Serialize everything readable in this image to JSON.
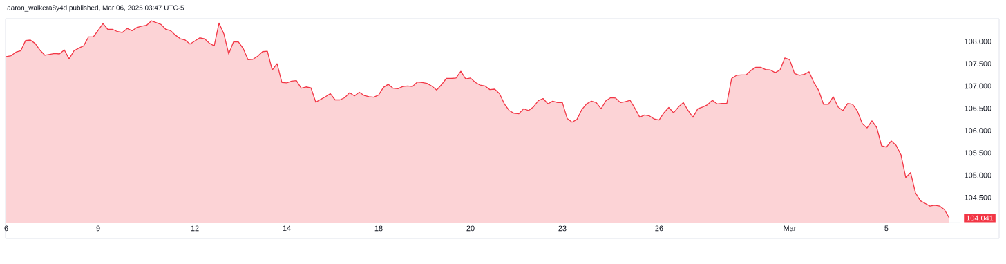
{
  "chart_data": {
    "type": "area",
    "title": "aaron_walkera8y4d published, Mar 06, 2025 03:47 UTC-5",
    "categories": [
      "6",
      null,
      null,
      null,
      null,
      null,
      null,
      null,
      null,
      null,
      null,
      null,
      null,
      null,
      null,
      null,
      null,
      null,
      null,
      "9",
      null,
      null,
      null,
      null,
      null,
      null,
      null,
      null,
      null,
      null,
      null,
      null,
      null,
      null,
      null,
      null,
      null,
      null,
      null,
      "12",
      null,
      null,
      null,
      null,
      null,
      null,
      null,
      null,
      null,
      null,
      null,
      null,
      null,
      null,
      null,
      null,
      null,
      null,
      "14",
      null,
      null,
      null,
      null,
      null,
      null,
      null,
      null,
      null,
      null,
      null,
      null,
      null,
      null,
      null,
      null,
      null,
      null,
      "18",
      null,
      null,
      null,
      null,
      null,
      null,
      null,
      null,
      null,
      null,
      null,
      null,
      null,
      null,
      null,
      null,
      null,
      null,
      "20",
      null,
      null,
      null,
      null,
      null,
      null,
      null,
      null,
      null,
      null,
      null,
      null,
      null,
      null,
      null,
      null,
      null,
      null,
      "23",
      null,
      null,
      null,
      null,
      null,
      null,
      null,
      null,
      null,
      null,
      null,
      null,
      null,
      null,
      null,
      null,
      null,
      null,
      null,
      "26",
      null,
      null,
      null,
      null,
      null,
      null,
      null,
      null,
      null,
      null,
      null,
      null,
      null,
      null,
      null,
      null,
      null,
      null,
      null,
      null,
      null,
      null,
      null,
      null,
      null,
      null,
      "Mar",
      null,
      null,
      null,
      null,
      null,
      null,
      null,
      null,
      null,
      null,
      null,
      null,
      null,
      null,
      null,
      null,
      null,
      null,
      null,
      "5",
      null,
      null,
      null,
      null,
      null,
      null,
      null,
      null,
      null,
      null,
      null,
      null,
      null
    ],
    "series": [
      {
        "color": "#f23645",
        "values": [
          107.66,
          107.68,
          107.76,
          107.79,
          108.02,
          108.03,
          107.95,
          107.8,
          107.69,
          107.71,
          107.73,
          107.72,
          107.81,
          107.61,
          107.79,
          107.85,
          107.9,
          108.1,
          108.1,
          108.25,
          108.4,
          108.27,
          108.27,
          108.22,
          108.2,
          108.29,
          108.24,
          108.31,
          108.34,
          108.36,
          108.46,
          108.42,
          108.38,
          108.27,
          108.24,
          108.14,
          108.06,
          108.03,
          107.94,
          108.01,
          108.08,
          108.06,
          107.96,
          107.9,
          108.41,
          108.17,
          107.72,
          107.99,
          107.99,
          107.84,
          107.59,
          107.6,
          107.67,
          107.77,
          107.78,
          107.36,
          107.5,
          107.08,
          107.07,
          107.11,
          107.12,
          106.95,
          106.98,
          106.96,
          106.64,
          106.7,
          106.76,
          106.83,
          106.69,
          106.69,
          106.74,
          106.85,
          106.78,
          106.86,
          106.79,
          106.76,
          106.75,
          106.8,
          106.97,
          107.04,
          106.95,
          106.94,
          106.99,
          107.0,
          106.99,
          107.09,
          107.08,
          107.06,
          107.0,
          106.91,
          107.03,
          107.17,
          107.17,
          107.18,
          107.33,
          107.16,
          107.18,
          107.08,
          107.02,
          107.0,
          106.92,
          106.93,
          106.83,
          106.6,
          106.45,
          106.39,
          106.38,
          106.49,
          106.45,
          106.53,
          106.67,
          106.72,
          106.6,
          106.66,
          106.63,
          106.63,
          106.27,
          106.19,
          106.25,
          106.47,
          106.6,
          106.66,
          106.63,
          106.49,
          106.67,
          106.74,
          106.73,
          106.63,
          106.65,
          106.68,
          106.5,
          106.3,
          106.35,
          106.33,
          106.26,
          106.24,
          106.4,
          106.52,
          106.4,
          106.53,
          106.63,
          106.45,
          106.3,
          106.49,
          106.53,
          106.58,
          106.68,
          106.6,
          106.61,
          106.61,
          107.17,
          107.24,
          107.25,
          107.25,
          107.35,
          107.42,
          107.42,
          107.37,
          107.36,
          107.3,
          107.36,
          107.63,
          107.59,
          107.28,
          107.24,
          107.26,
          107.32,
          107.08,
          106.9,
          106.59,
          106.59,
          106.76,
          106.53,
          106.45,
          106.61,
          106.59,
          106.44,
          106.16,
          106.06,
          106.22,
          106.07,
          105.66,
          105.63,
          105.77,
          105.67,
          105.46,
          104.95,
          105.06,
          104.61,
          104.43,
          104.37,
          104.31,
          104.33,
          104.31,
          104.23,
          104.04
        ]
      }
    ],
    "ylim": [
      103.94,
      108.51
    ],
    "yticks": [
      {
        "value": 104.5,
        "label": "104.500"
      },
      {
        "value": 105,
        "label": "105.000"
      },
      {
        "value": 105.5,
        "label": "105.500"
      },
      {
        "value": 106,
        "label": "106.000"
      },
      {
        "value": 106.5,
        "label": "106.500"
      },
      {
        "value": 107,
        "label": "107.000"
      },
      {
        "value": 107.5,
        "label": "107.500"
      },
      {
        "value": 108,
        "label": "108.000"
      }
    ],
    "annotations": [
      "104.041"
    ]
  }
}
